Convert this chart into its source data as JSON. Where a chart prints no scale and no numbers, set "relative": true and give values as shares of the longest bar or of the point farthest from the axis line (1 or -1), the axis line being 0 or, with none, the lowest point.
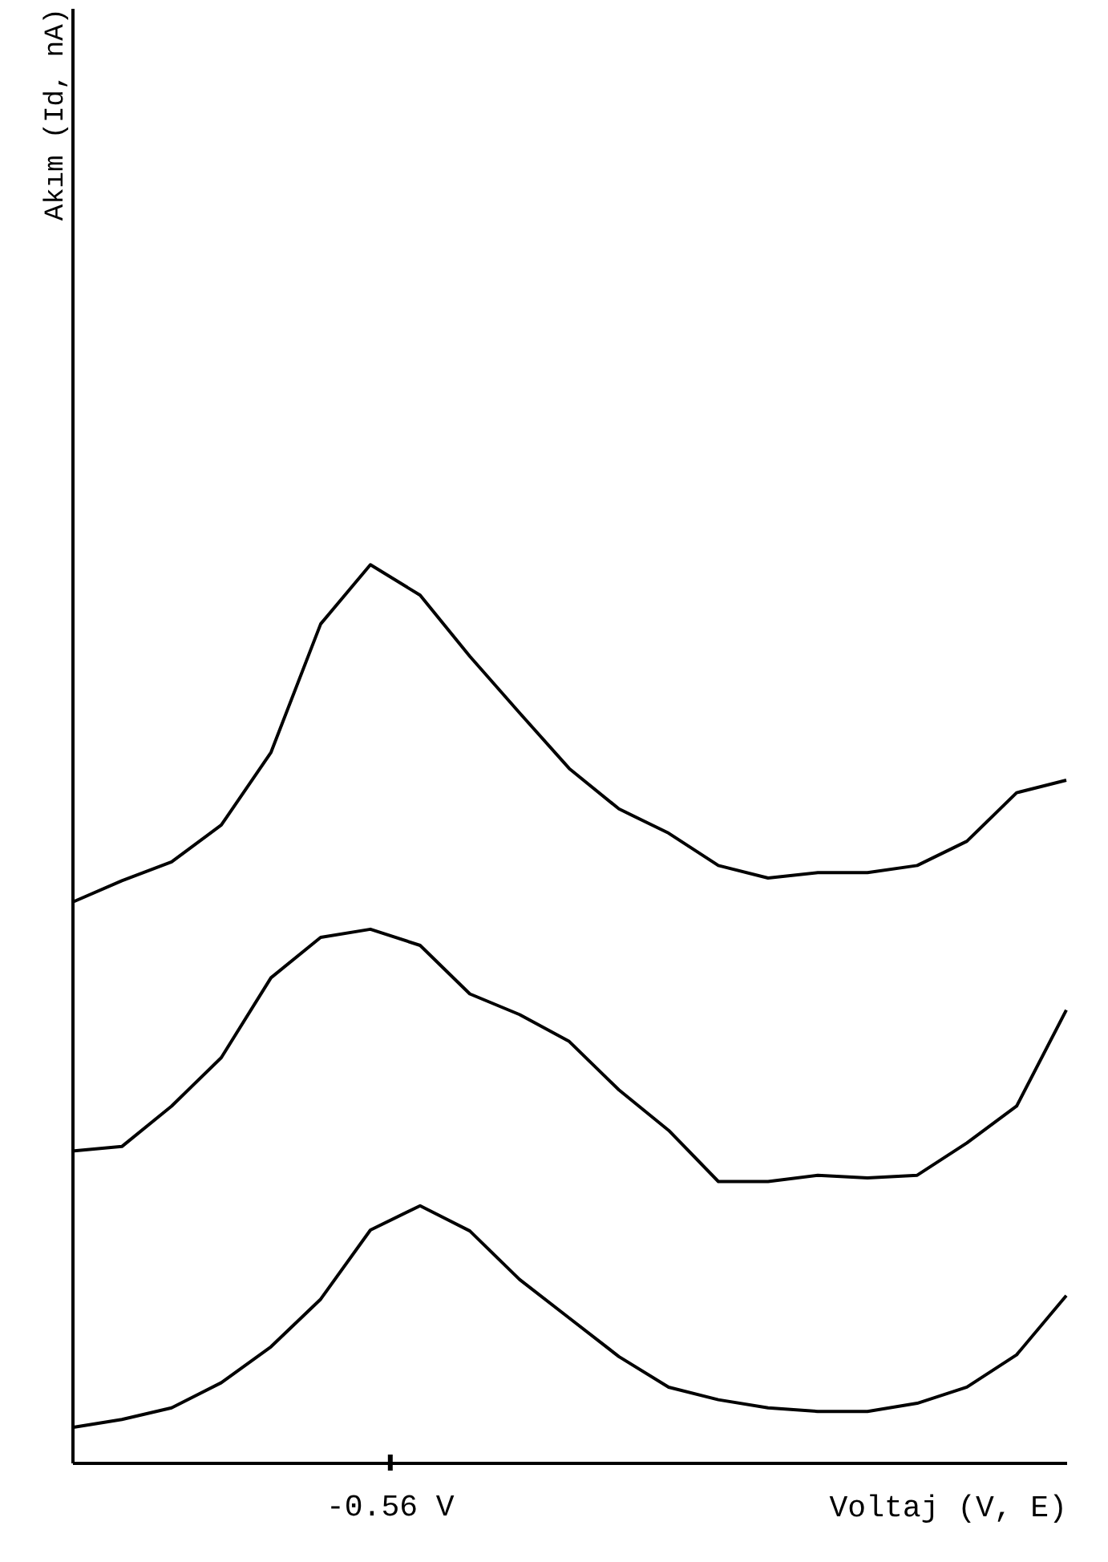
{
  "chart_data": {
    "type": "line",
    "relative": true,
    "xlabel": "Voltaj (V, E)",
    "categories": [
      null,
      null,
      null,
      null,
      null,
      null,
      null,
      null,
      null,
      null,
      null,
      null,
      null,
      null,
      null,
      null,
      null,
      null,
      null,
      null,
      null
    ],
    "series": [
      {
        "color": "#000000",
        "values": [
          0.624,
          0.648,
          0.669,
          0.71,
          0.791,
          0.934,
          1.0,
          0.966,
          0.898,
          0.835,
          0.773,
          0.728,
          0.701,
          0.665,
          0.651,
          0.657,
          0.657,
          0.665,
          0.692,
          0.746,
          0.76
        ]
      },
      {
        "color": "#000000",
        "values": [
          0.347,
          0.352,
          0.397,
          0.451,
          0.54,
          0.585,
          0.594,
          0.576,
          0.522,
          0.499,
          0.469,
          0.415,
          0.37,
          0.313,
          0.313,
          0.32,
          0.317,
          0.32,
          0.356,
          0.397,
          0.504
        ]
      },
      {
        "color": "#000000",
        "values": [
          0.039,
          0.048,
          0.061,
          0.089,
          0.129,
          0.182,
          0.259,
          0.286,
          0.258,
          0.204,
          0.161,
          0.118,
          0.084,
          0.07,
          0.061,
          0.057,
          0.057,
          0.066,
          0.084,
          0.12,
          0.186
        ]
      }
    ],
    "annotations": [
      "-0.56 V",
      "Akım (Id, nA)"
    ]
  }
}
